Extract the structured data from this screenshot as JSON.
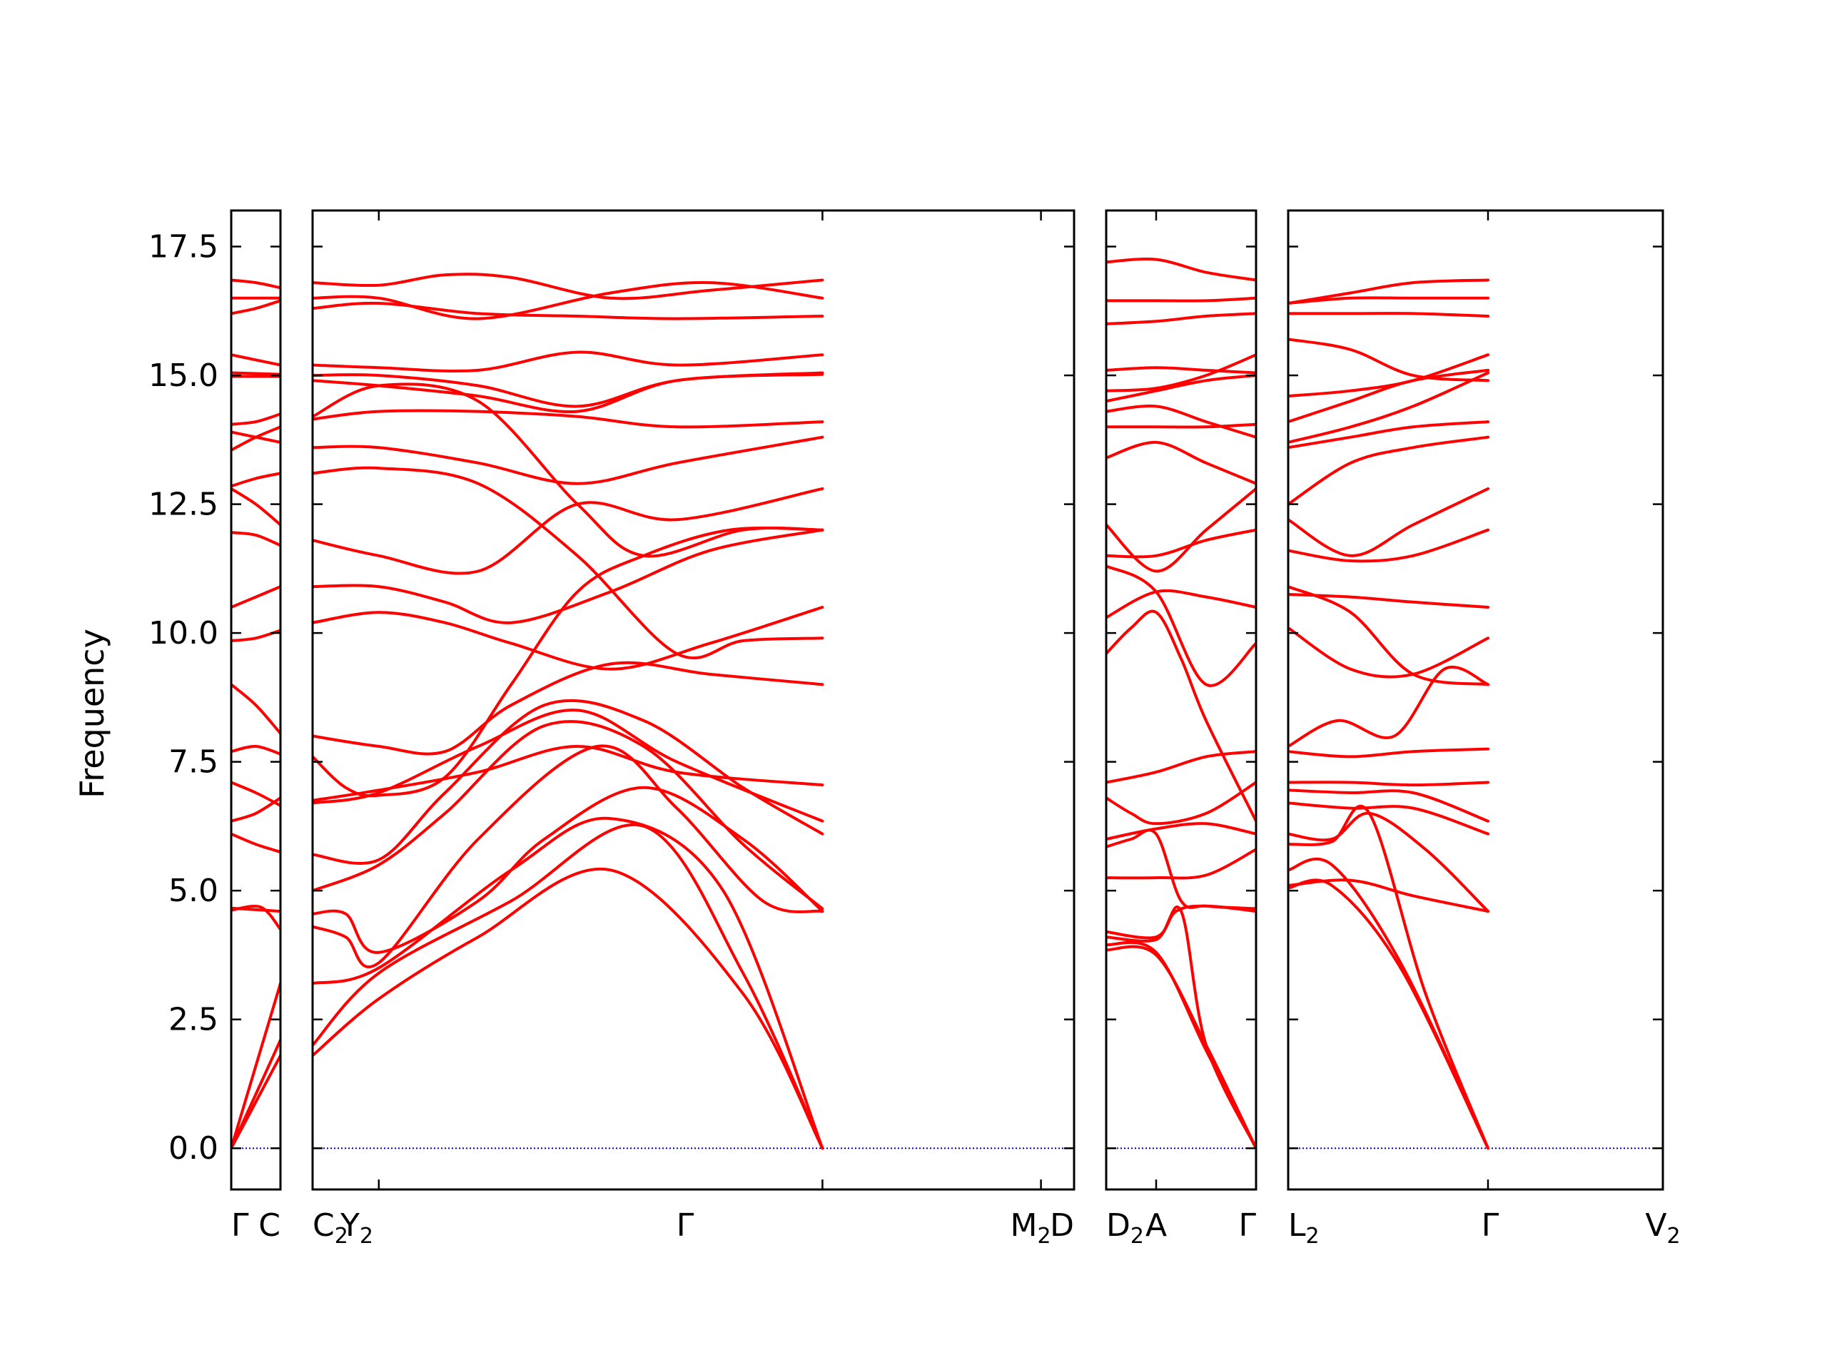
{
  "chart_data": {
    "type": "line",
    "ylabel": "Frequency",
    "ylim": [
      -0.8,
      18.2
    ],
    "yticks": [
      0.0,
      2.5,
      5.0,
      7.5,
      10.0,
      12.5,
      15.0,
      17.5
    ],
    "ytick_labels": [
      "0.0",
      "2.5",
      "5.0",
      "7.5",
      "10.0",
      "12.5",
      "15.0",
      "17.5"
    ],
    "zero_line_color": "#0000cc",
    "band_color": "#ff0000",
    "bottom_labels": [
      {
        "label": "Γ"
      },
      {
        "label": "C"
      },
      {
        "label": "C",
        "sub": "2"
      },
      {
        "label": "Y",
        "sub": "2"
      },
      {
        "label": "Γ"
      },
      {
        "label": "M",
        "sub": "2"
      },
      {
        "label": "D"
      },
      {
        "label": "D",
        "sub": "2"
      },
      {
        "label": "A"
      },
      {
        "label": "Γ"
      },
      {
        "label": "L",
        "sub": "2"
      },
      {
        "label": "Γ"
      },
      {
        "label": "V",
        "sub": "2"
      }
    ],
    "panels": [
      {
        "x_range": [
          0,
          1
        ],
        "ticks": [
          0,
          1
        ],
        "bands": [
          [
            0,
            0,
            1,
            3.2
          ],
          [
            0,
            0,
            1,
            2.1
          ],
          [
            0,
            0,
            1,
            1.8
          ],
          [
            0,
            4.62,
            0.6,
            4.68,
            1,
            4.25
          ],
          [
            0,
            4.66,
            1,
            4.6
          ],
          [
            0,
            6.1,
            0.5,
            5.9,
            1,
            5.75
          ],
          [
            0,
            6.35,
            0.5,
            6.5,
            1,
            6.8
          ],
          [
            0,
            7.1,
            0.5,
            6.9,
            1,
            6.65
          ],
          [
            0,
            7.7,
            0.5,
            7.8,
            1,
            7.65
          ],
          [
            0,
            9.0,
            0.5,
            8.6,
            1,
            8.05
          ],
          [
            0,
            9.85,
            0.5,
            9.9,
            1,
            10.05
          ],
          [
            0,
            10.5,
            0.5,
            10.7,
            1,
            10.9
          ],
          [
            0,
            11.95,
            0.5,
            11.9,
            1,
            11.7
          ],
          [
            0,
            12.8,
            0.5,
            12.5,
            1,
            12.1
          ],
          [
            0,
            12.85,
            0.5,
            13.0,
            1,
            13.1
          ],
          [
            0,
            13.55,
            0.5,
            13.8,
            1,
            14.0
          ],
          [
            0,
            13.9,
            0.5,
            13.8,
            1,
            13.7
          ],
          [
            0,
            14.05,
            0.5,
            14.1,
            1,
            14.25
          ],
          [
            0,
            14.98,
            1,
            14.98
          ],
          [
            0,
            15.05,
            1,
            15.02
          ],
          [
            0,
            15.4,
            0.5,
            15.3,
            1,
            15.2
          ],
          [
            0,
            16.2,
            0.5,
            16.3,
            1,
            16.45
          ],
          [
            0,
            16.5,
            1,
            16.5
          ],
          [
            0,
            16.85,
            0.5,
            16.8,
            1,
            16.7
          ]
        ]
      },
      {
        "x_range": [
          0,
          11.5
        ],
        "ticks": [
          1,
          7.7,
          11
        ],
        "bands": [
          [
            0,
            1.8,
            1,
            2.9,
            2.5,
            4.1,
            4.5,
            5.4,
            6.5,
            3.0,
            7.7,
            0
          ],
          [
            0,
            2.0,
            1,
            3.4,
            3,
            4.8,
            5,
            6.25,
            6.5,
            3.4,
            7.7,
            0
          ],
          [
            0,
            3.2,
            1,
            3.5,
            3,
            5.4,
            4.5,
            6.4,
            6.2,
            5.0,
            7.7,
            0
          ],
          [
            0,
            4.3,
            0.5,
            4.1,
            1,
            3.6,
            2.5,
            6.0,
            4.3,
            7.8,
            5.5,
            6.6,
            6.8,
            4.8,
            7.7,
            4.6
          ],
          [
            0,
            4.55,
            0.5,
            4.55,
            1,
            3.8,
            2.5,
            4.8,
            3.5,
            6.0,
            5,
            7.0,
            6.5,
            6.0,
            7.7,
            4.6
          ],
          [
            0,
            5.0,
            1,
            5.5,
            2,
            6.5,
            3.5,
            8.2,
            5,
            7.8,
            6.5,
            5.9,
            7.7,
            4.65
          ],
          [
            0,
            5.7,
            1,
            5.6,
            2,
            6.9,
            3.5,
            8.6,
            5,
            8.3,
            6.5,
            7.0,
            7.7,
            6.1
          ],
          [
            0,
            6.7,
            1,
            6.9,
            2.5,
            7.8,
            4,
            8.5,
            5.5,
            7.5,
            7.7,
            6.35
          ],
          [
            0,
            6.75,
            1,
            6.95,
            2.5,
            7.3,
            4,
            7.8,
            5.5,
            7.3,
            7.7,
            7.05
          ],
          [
            0,
            7.6,
            0.5,
            7.0,
            1,
            6.85,
            2,
            7.2,
            3,
            9.0,
            4,
            10.8,
            5,
            11.5,
            6.3,
            12.0,
            7.7,
            12.0
          ],
          [
            0,
            8.0,
            1,
            7.8,
            2,
            7.7,
            3,
            8.6,
            4.5,
            9.4,
            6,
            9.2,
            7.7,
            9.0
          ],
          [
            0,
            10.2,
            1,
            10.4,
            2,
            10.2,
            3,
            9.8,
            4.5,
            9.3,
            6,
            9.8,
            7.7,
            10.5
          ],
          [
            0,
            10.9,
            1,
            10.9,
            2,
            10.6,
            3,
            10.2,
            4.5,
            10.8,
            6,
            11.6,
            7.7,
            12.0
          ],
          [
            0,
            11.8,
            1,
            11.5,
            2.5,
            11.2,
            4,
            12.5,
            5.5,
            12.2,
            7.7,
            12.8
          ],
          [
            0,
            13.1,
            1,
            13.2,
            2.5,
            12.9,
            4,
            11.5,
            5.5,
            9.6,
            6.5,
            9.85,
            7.7,
            9.9
          ],
          [
            0,
            13.6,
            1,
            13.6,
            2.5,
            13.3,
            4,
            12.9,
            5.5,
            13.3,
            7.7,
            13.8
          ],
          [
            0,
            14.15,
            1,
            14.3,
            2.5,
            14.3,
            4,
            14.2,
            5.5,
            14.0,
            7.7,
            14.1
          ],
          [
            0,
            14.2,
            1,
            14.8,
            2.5,
            14.5,
            4,
            12.5,
            5,
            11.5,
            6.5,
            12.0,
            7.7,
            12.0
          ],
          [
            0,
            14.9,
            1,
            14.8,
            2.5,
            14.6,
            4,
            14.3,
            5.5,
            14.9,
            7.7,
            15.02
          ],
          [
            0,
            15.0,
            1,
            15.0,
            2.5,
            14.8,
            4,
            14.4,
            5.5,
            14.9,
            7.7,
            15.05
          ],
          [
            0,
            15.2,
            1,
            15.15,
            2.5,
            15.1,
            4,
            15.45,
            5.5,
            15.2,
            7.7,
            15.4
          ],
          [
            0,
            16.3,
            1,
            16.4,
            2.5,
            16.2,
            4,
            16.15,
            5.5,
            16.1,
            7.7,
            16.15
          ],
          [
            0,
            16.5,
            1,
            16.5,
            2.5,
            16.1,
            4.5,
            16.6,
            6,
            16.8,
            7.7,
            16.5
          ],
          [
            0,
            16.8,
            1,
            16.75,
            2,
            16.95,
            3,
            16.9,
            4.5,
            16.5,
            6,
            16.65,
            7.7,
            16.85
          ]
        ]
      },
      {
        "x_range": [
          0,
          3
        ],
        "ticks": [
          1
        ],
        "bands": [
          [
            0,
            3.85,
            1,
            3.75,
            2,
            2.0,
            3,
            0
          ],
          [
            0,
            3.95,
            1,
            3.8,
            2,
            1.9,
            3,
            0
          ],
          [
            0,
            4.1,
            1,
            4.05,
            1.5,
            4.6,
            2,
            2.0,
            3,
            0
          ],
          [
            0,
            4.2,
            1,
            4.1,
            1.4,
            4.6,
            2,
            4.7,
            3,
            4.6
          ],
          [
            0,
            5.25,
            1,
            5.25,
            2,
            5.3,
            3,
            5.8
          ],
          [
            0,
            5.85,
            0.5,
            6.0,
            1,
            6.1,
            1.5,
            4.8,
            2,
            4.7,
            3,
            4.65
          ],
          [
            0,
            6.0,
            1,
            6.2,
            2,
            6.3,
            3,
            6.1
          ],
          [
            0,
            6.8,
            0.5,
            6.5,
            1,
            6.3,
            2,
            6.5,
            3,
            7.1
          ],
          [
            0,
            7.1,
            1,
            7.3,
            2,
            7.6,
            3,
            7.7
          ],
          [
            0,
            9.6,
            0.5,
            10.1,
            1,
            10.4,
            1.5,
            9.5,
            2,
            8.3,
            3,
            6.35
          ],
          [
            0,
            10.3,
            1,
            10.8,
            2,
            10.7,
            3,
            10.5
          ],
          [
            0,
            11.3,
            1,
            10.8,
            2,
            9.0,
            3,
            9.8
          ],
          [
            0,
            11.5,
            1,
            11.5,
            2,
            11.8,
            3,
            12.0
          ],
          [
            0,
            12.1,
            1,
            11.2,
            2,
            12.0,
            3,
            12.8
          ],
          [
            0,
            13.4,
            1,
            13.7,
            2,
            13.3,
            3,
            12.9
          ],
          [
            0,
            14.0,
            1,
            14.0,
            2,
            14.0,
            3,
            14.05
          ],
          [
            0,
            14.3,
            1,
            14.4,
            2,
            14.1,
            3,
            13.8
          ],
          [
            0,
            14.5,
            1,
            14.7,
            2,
            14.9,
            3,
            15.0
          ],
          [
            0,
            14.7,
            1,
            14.75,
            2,
            15.0,
            3,
            15.4
          ],
          [
            0,
            15.1,
            1,
            15.15,
            2,
            15.1,
            3,
            15.05
          ],
          [
            0,
            16.0,
            1,
            16.05,
            2,
            16.15,
            3,
            16.2
          ],
          [
            0,
            16.45,
            1,
            16.45,
            2,
            16.45,
            3,
            16.5
          ],
          [
            0,
            17.2,
            1,
            17.25,
            2,
            17.0,
            3,
            16.85
          ]
        ]
      },
      {
        "x_range": [
          0,
          6
        ],
        "ticks": [
          3.2
        ],
        "bands": [
          [
            0,
            5.05,
            0.7,
            5.1,
            1.8,
            3.5,
            3.2,
            0
          ],
          [
            0,
            5.4,
            0.7,
            5.5,
            1.8,
            3.6,
            3.2,
            0
          ],
          [
            0,
            5.1,
            1,
            5.2,
            2,
            4.9,
            3.2,
            4.6
          ],
          [
            0,
            5.9,
            0.7,
            5.95,
            1.3,
            6.5,
            2.2,
            3.0,
            3.2,
            0
          ],
          [
            0,
            6.1,
            0.7,
            6.0,
            1.3,
            6.5,
            2.2,
            5.8,
            3.2,
            4.6
          ],
          [
            0,
            6.7,
            1,
            6.6,
            2,
            6.6,
            3.2,
            6.1
          ],
          [
            0,
            6.95,
            1,
            6.9,
            2,
            6.9,
            3.2,
            6.35
          ],
          [
            0,
            7.1,
            1,
            7.1,
            2,
            7.05,
            3.2,
            7.1
          ],
          [
            0,
            7.7,
            1,
            7.6,
            2,
            7.7,
            3.2,
            7.75
          ],
          [
            0,
            7.8,
            0.8,
            8.3,
            1.7,
            8.0,
            2.5,
            9.3,
            3.2,
            9.0
          ],
          [
            0,
            10.1,
            1,
            9.3,
            2,
            9.2,
            3.2,
            9.9
          ],
          [
            0,
            10.75,
            1,
            10.7,
            2,
            10.6,
            3.2,
            10.5
          ],
          [
            0,
            10.9,
            1,
            10.4,
            2,
            9.2,
            3.2,
            9.0
          ],
          [
            0,
            11.6,
            1,
            11.4,
            2,
            11.5,
            3.2,
            12.0
          ],
          [
            0,
            12.2,
            1,
            11.5,
            2,
            12.1,
            3.2,
            12.8
          ],
          [
            0,
            12.5,
            1,
            13.3,
            2,
            13.6,
            3.2,
            13.8
          ],
          [
            0,
            13.6,
            1,
            13.8,
            2,
            14.0,
            3.2,
            14.1
          ],
          [
            0,
            13.7,
            1,
            14.0,
            2,
            14.4,
            3.2,
            15.05
          ],
          [
            0,
            14.1,
            1,
            14.5,
            2,
            14.9,
            3.2,
            15.1
          ],
          [
            0,
            14.6,
            1,
            14.7,
            2,
            14.9,
            3.2,
            15.4
          ],
          [
            0,
            15.7,
            1,
            15.5,
            2,
            15.0,
            3.2,
            14.9
          ],
          [
            0,
            16.2,
            1,
            16.2,
            2,
            16.2,
            3.2,
            16.15
          ],
          [
            0,
            16.4,
            1,
            16.6,
            2,
            16.8,
            3.2,
            16.85
          ],
          [
            0,
            16.4,
            1,
            16.5,
            2,
            16.5,
            3.2,
            16.5
          ]
        ]
      }
    ]
  }
}
